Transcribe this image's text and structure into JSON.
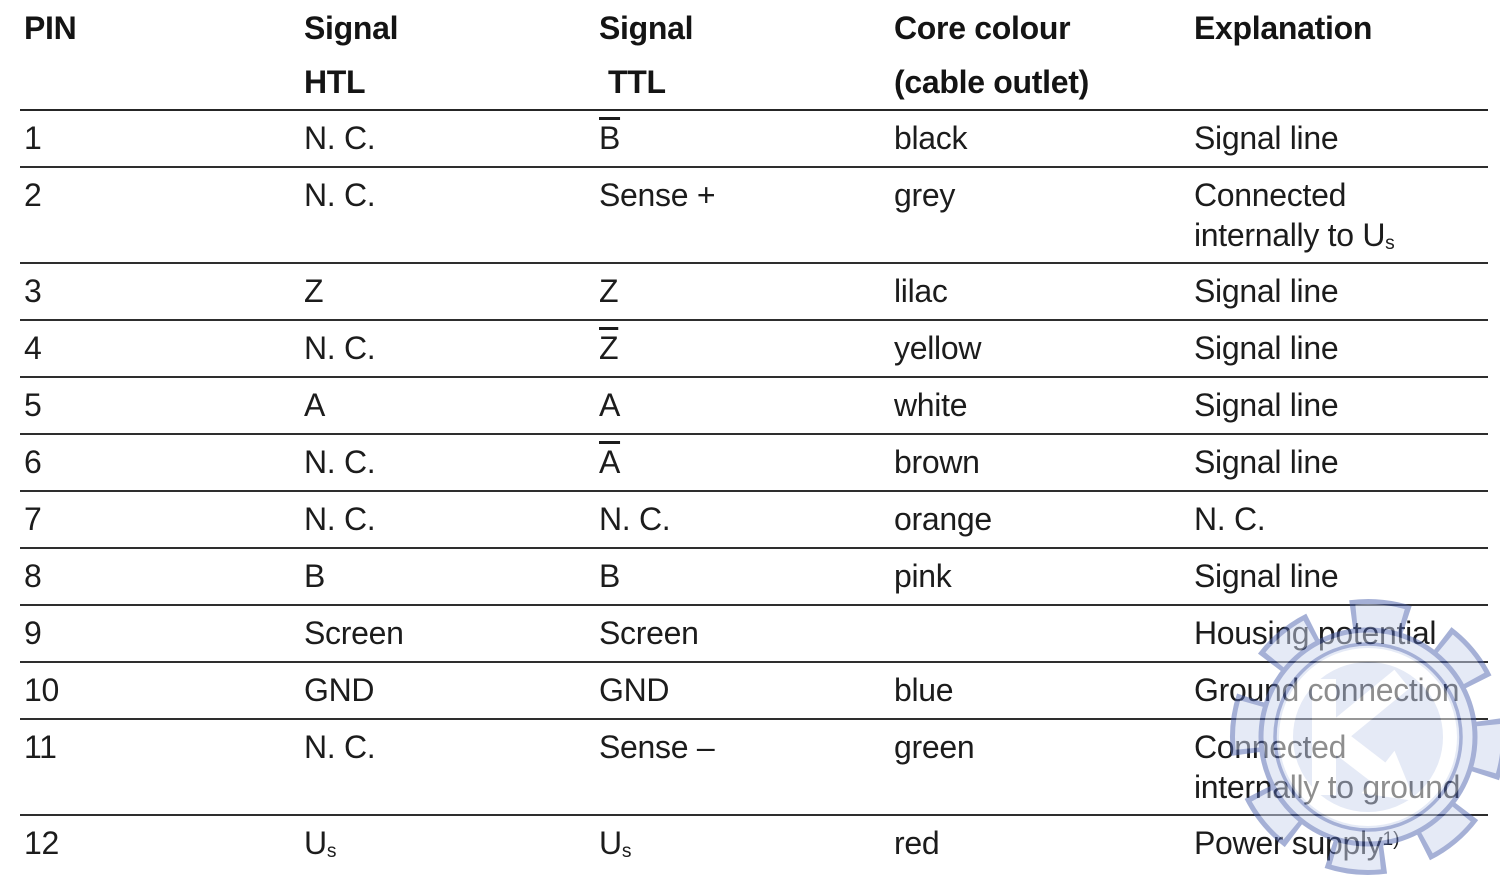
{
  "table": {
    "headers": [
      {
        "id": "pin",
        "lines": [
          [
            "PIN"
          ]
        ]
      },
      {
        "id": "signal-htl",
        "lines": [
          [
            "Signal"
          ],
          [
            "HTL"
          ]
        ]
      },
      {
        "id": "signal-ttl",
        "lines": [
          [
            "Signal"
          ],
          [
            "TTL"
          ]
        ]
      },
      {
        "id": "core-colour",
        "lines": [
          [
            "Core colour"
          ],
          [
            "(cable outlet)"
          ]
        ]
      },
      {
        "id": "explanation",
        "lines": [
          [
            "Explanation"
          ]
        ]
      }
    ],
    "rows": [
      {
        "pin": "1",
        "htl": [
          [
            "N. C."
          ]
        ],
        "ttl": [
          [
            {
              "t": "B",
              "s": "bar"
            }
          ]
        ],
        "core": "black",
        "explanation": [
          [
            "Signal line"
          ]
        ],
        "tall": false
      },
      {
        "pin": "2",
        "htl": [
          [
            "N. C."
          ]
        ],
        "ttl": [
          [
            "Sense +"
          ]
        ],
        "core": "grey",
        "explanation": [
          [
            "Connected"
          ],
          [
            "internally to U",
            {
              "t": "s",
              "s": "sub"
            }
          ]
        ],
        "tall": true
      },
      {
        "pin": "3",
        "htl": [
          [
            "Z"
          ]
        ],
        "ttl": [
          [
            "Z"
          ]
        ],
        "core": "lilac",
        "explanation": [
          [
            "Signal line"
          ]
        ],
        "tall": false
      },
      {
        "pin": "4",
        "htl": [
          [
            "N. C."
          ]
        ],
        "ttl": [
          [
            {
              "t": "Z",
              "s": "bar"
            }
          ]
        ],
        "core": "yellow",
        "explanation": [
          [
            "Signal line"
          ]
        ],
        "tall": false
      },
      {
        "pin": "5",
        "htl": [
          [
            "A"
          ]
        ],
        "ttl": [
          [
            "A"
          ]
        ],
        "core": "white",
        "explanation": [
          [
            "Signal line"
          ]
        ],
        "tall": false
      },
      {
        "pin": "6",
        "htl": [
          [
            "N. C."
          ]
        ],
        "ttl": [
          [
            {
              "t": "A",
              "s": "bar"
            }
          ]
        ],
        "core": "brown",
        "explanation": [
          [
            "Signal line"
          ]
        ],
        "tall": false
      },
      {
        "pin": "7",
        "htl": [
          [
            "N. C."
          ]
        ],
        "ttl": [
          [
            "N. C."
          ]
        ],
        "core": "orange",
        "explanation": [
          [
            "N. C."
          ]
        ],
        "tall": false
      },
      {
        "pin": "8",
        "htl": [
          [
            "B"
          ]
        ],
        "ttl": [
          [
            "B"
          ]
        ],
        "core": "pink",
        "explanation": [
          [
            "Signal line"
          ]
        ],
        "tall": false
      },
      {
        "pin": "9",
        "htl": [
          [
            "Screen"
          ]
        ],
        "ttl": [
          [
            "Screen"
          ]
        ],
        "core": "",
        "explanation": [
          [
            "Housing potential"
          ]
        ],
        "tall": false
      },
      {
        "pin": "10",
        "htl": [
          [
            "GND"
          ]
        ],
        "ttl": [
          [
            "GND"
          ]
        ],
        "core": "blue",
        "explanation": [
          [
            "Ground connection"
          ]
        ],
        "tall": false
      },
      {
        "pin": "11",
        "htl": [
          [
            "N. C."
          ]
        ],
        "ttl": [
          [
            "Sense –"
          ]
        ],
        "core": "green",
        "explanation": [
          [
            "Connected"
          ],
          [
            "internally to ground"
          ]
        ],
        "tall": true
      },
      {
        "pin": "12",
        "htl": [
          [
            "U",
            {
              "t": "s",
              "s": "sub"
            }
          ]
        ],
        "ttl": [
          [
            "U",
            {
              "t": "s",
              "s": "sub"
            }
          ]
        ],
        "core": "red",
        "explanation": [
          [
            "Power supply",
            {
              "t": "1)",
              "s": "sup"
            }
          ]
        ],
        "tall": false
      }
    ]
  },
  "watermark": {
    "icon": "gear-k-arrow-logo",
    "fill_color": "#ccd6ef",
    "outline_color": "#4d63ae",
    "glyph_color": "#ffffff"
  }
}
